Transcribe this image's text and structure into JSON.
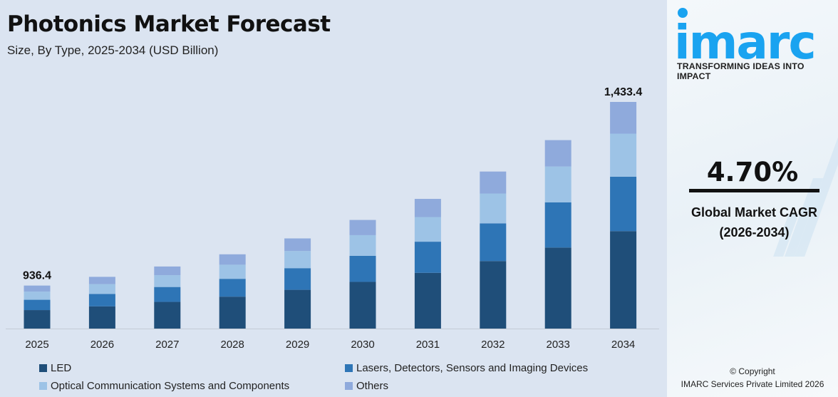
{
  "header": {
    "title": "Photonics Market Forecast",
    "subtitle": "Size, By Type, 2025-2034 (USD Billion)"
  },
  "chart_data": {
    "type": "bar",
    "stacked": true,
    "title": "Photonics Market Forecast",
    "subtitle": "Size, By Type, 2025-2034 (USD Billion)",
    "categories": [
      "2025",
      "2026",
      "2027",
      "2028",
      "2029",
      "2030",
      "2031",
      "2032",
      "2033",
      "2034"
    ],
    "totals": [
      936.4,
      960,
      988,
      1021,
      1064,
      1114,
      1171,
      1245,
      1330,
      1433.4
    ],
    "data_labels": {
      "2025": "936.4",
      "2034": "1,433.4"
    },
    "series": [
      {
        "name": "LED",
        "color": "#1f4e79",
        "values": [
          402.7,
          412.8,
          424.8,
          439.0,
          457.5,
          479.0,
          503.5,
          535.4,
          571.9,
          616.4
        ]
      },
      {
        "name": "Lasers, Detectors, Sensors and Imaging Devices",
        "color": "#2e75b6",
        "values": [
          224.7,
          230.4,
          237.1,
          245.0,
          255.4,
          267.4,
          281.0,
          298.8,
          319.2,
          344.0
        ]
      },
      {
        "name": "Optical Communication Systems and Components",
        "color": "#9dc3e6",
        "values": [
          177.9,
          182.4,
          187.7,
          194.0,
          202.2,
          211.7,
          222.5,
          236.6,
          252.7,
          272.3
        ]
      },
      {
        "name": "Others",
        "color": "#8faadc",
        "values": [
          131.1,
          134.4,
          138.4,
          143.0,
          148.9,
          155.9,
          164.0,
          174.2,
          186.2,
          200.7
        ]
      }
    ],
    "xlabel": "",
    "ylabel": "",
    "y_axis_visible": false,
    "grid": false,
    "legend_placement": "bottom"
  },
  "panel": {
    "logo": "imarc",
    "tagline": "TRANSFORMING IDEAS INTO IMPACT",
    "cagr_value": "4.70%",
    "cagr_label_1": "Global Market CAGR",
    "cagr_label_2": "(2026-2034)",
    "copyright_1": "© Copyright",
    "copyright_2": "IMARC Services Private Limited 2026",
    "brand_color": "#1aa3f0"
  }
}
